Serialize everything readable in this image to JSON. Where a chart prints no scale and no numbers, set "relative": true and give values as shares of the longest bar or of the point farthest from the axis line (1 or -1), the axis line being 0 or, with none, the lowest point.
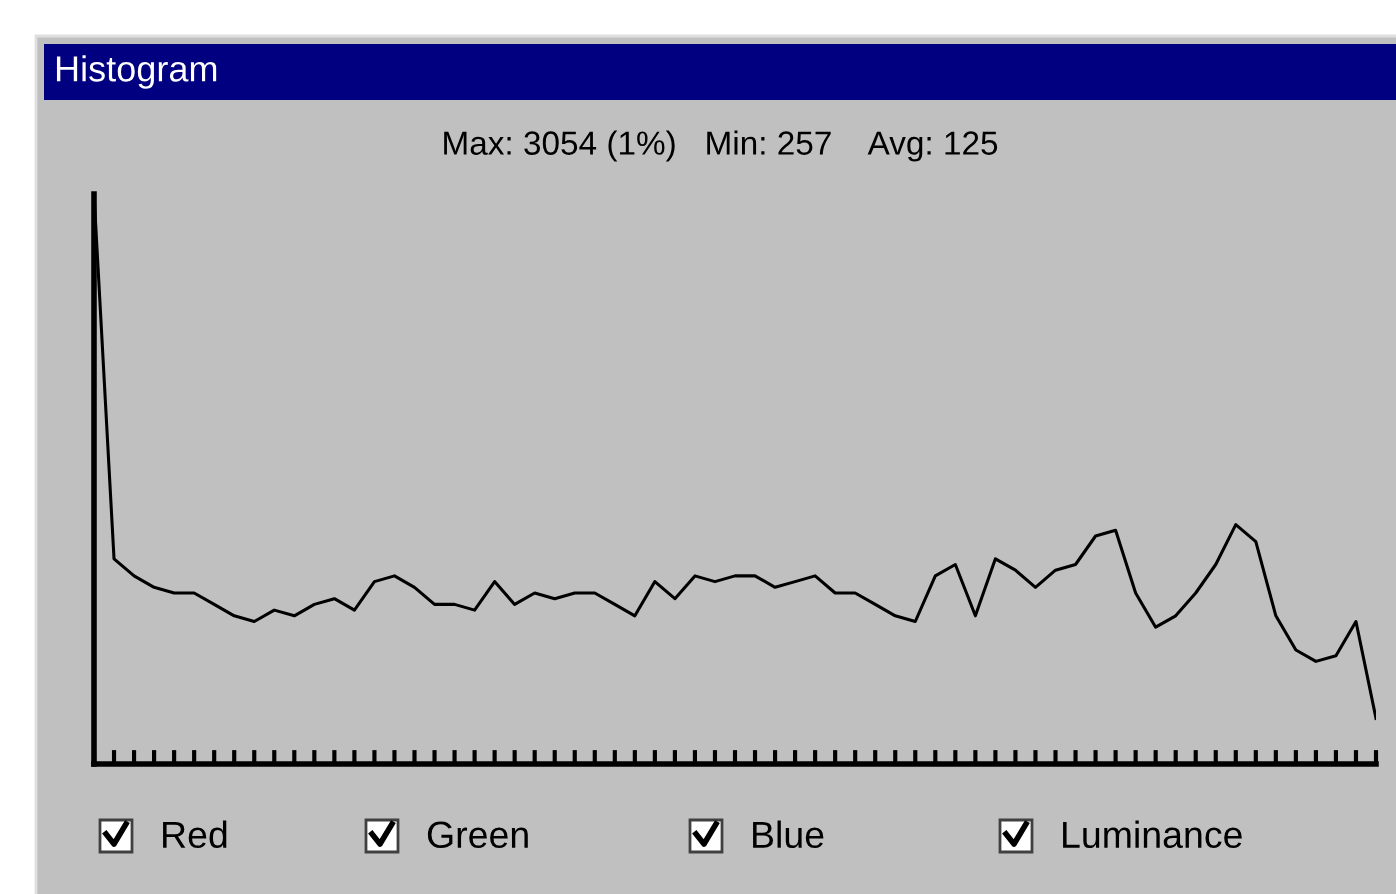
{
  "chart_data": {
    "type": "line",
    "title": "Histogram",
    "subtitle": "Max: 3054 (1%)   Min: 257    Avg: 125",
    "relative": true,
    "line_style": "solid",
    "annotations": [
      "Red",
      "Green",
      "Blue",
      "Luminance"
    ],
    "categories": [
      null,
      null,
      null,
      null,
      null,
      null,
      null,
      null,
      null,
      null,
      null,
      null,
      null,
      null,
      null,
      null,
      null,
      null,
      null,
      null,
      null,
      null,
      null,
      null,
      null,
      null,
      null,
      null,
      null,
      null,
      null,
      null,
      null,
      null,
      null,
      null,
      null,
      null,
      null,
      null,
      null,
      null,
      null,
      null,
      null,
      null,
      null,
      null,
      null,
      null,
      null,
      null,
      null,
      null,
      null,
      null,
      null,
      null,
      null,
      null,
      null,
      null,
      null,
      null,
      null
    ],
    "series": [
      {
        "color": "#000000",
        "values": [
          1.0,
          0.36,
          0.33,
          0.31,
          0.3,
          0.3,
          0.28,
          0.26,
          0.25,
          0.27,
          0.26,
          0.28,
          0.29,
          0.27,
          0.32,
          0.33,
          0.31,
          0.28,
          0.28,
          0.27,
          0.32,
          0.28,
          0.3,
          0.29,
          0.3,
          0.3,
          0.28,
          0.26,
          0.32,
          0.29,
          0.33,
          0.32,
          0.33,
          0.33,
          0.31,
          0.32,
          0.33,
          0.3,
          0.3,
          0.28,
          0.26,
          0.25,
          0.33,
          0.35,
          0.26,
          0.36,
          0.34,
          0.31,
          0.34,
          0.35,
          0.4,
          0.41,
          0.3,
          0.24,
          0.26,
          0.3,
          0.35,
          0.42,
          0.39,
          0.26,
          0.2,
          0.18,
          0.19,
          0.25,
          0.08
        ]
      }
    ]
  }
}
